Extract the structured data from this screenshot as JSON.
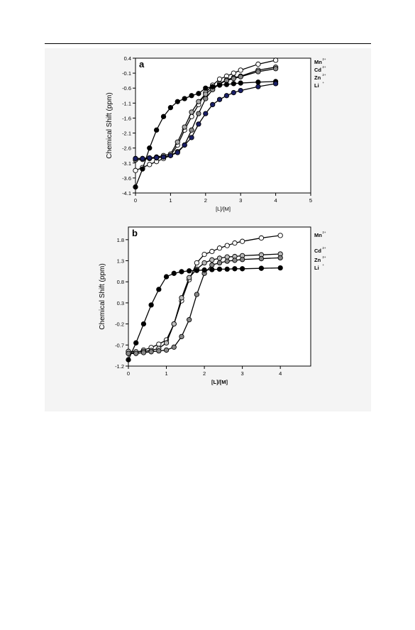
{
  "chart_data": [
    {
      "type": "line",
      "panel_label": "a",
      "xlabel": "[L]/[M]",
      "ylabel": "Chemical Shift (ppm)",
      "xlim": [
        0,
        5
      ],
      "ylim": [
        -4.1,
        0.4
      ],
      "xticks": [
        0,
        1,
        2,
        3,
        4,
        5
      ],
      "yticks": [
        0.4,
        -0.1,
        -0.6,
        -1.1,
        -1.6,
        -2.1,
        -2.6,
        -3.1,
        -3.6,
        -4.1
      ],
      "ytick_labels": [
        "0.4",
        "-0.1",
        "-0.6",
        "-1.1",
        "-1.6",
        "-2.1",
        "-2.6",
        "-3.1",
        "-3.6",
        "-4.1"
      ],
      "grid": false,
      "legend_labels": [
        {
          "text": "Mn",
          "sup": "2+"
        },
        {
          "text": "Cd",
          "sup": "2+"
        },
        {
          "text": "Zn",
          "sup": "2+"
        },
        {
          "text": "Li",
          "sup": "+"
        }
      ],
      "series": [
        {
          "key": "Mn",
          "marker_fill": "#ffffff",
          "x": [
            0,
            0.2,
            0.4,
            0.6,
            0.8,
            1.0,
            1.2,
            1.4,
            1.6,
            1.8,
            2.0,
            2.2,
            2.4,
            2.6,
            2.8,
            3.0,
            3.5,
            4.0
          ],
          "y": [
            -3.35,
            -3.25,
            -3.15,
            -3.05,
            -2.95,
            -2.85,
            -2.5,
            -2.0,
            -1.55,
            -1.15,
            -0.75,
            -0.5,
            -0.3,
            -0.2,
            -0.1,
            0.0,
            0.2,
            0.33
          ]
        },
        {
          "key": "Cd",
          "marker_fill": "#aaaaaa",
          "x": [
            0,
            0.2,
            0.4,
            0.6,
            0.8,
            1.0,
            1.2,
            1.4,
            1.6,
            1.8,
            2.0,
            2.2,
            2.4,
            2.6,
            2.8,
            3.0,
            3.5,
            4.0
          ],
          "y": [
            -2.95,
            -2.95,
            -2.93,
            -2.9,
            -2.85,
            -2.8,
            -2.4,
            -1.9,
            -1.4,
            -1.05,
            -0.8,
            -0.6,
            -0.45,
            -0.32,
            -0.25,
            -0.2,
            0.0,
            0.1
          ]
        },
        {
          "key": "Zn",
          "marker_fill": "#888888",
          "x": [
            0,
            0.2,
            0.4,
            0.6,
            0.8,
            1.0,
            1.2,
            1.4,
            1.6,
            1.8,
            2.0,
            2.2,
            2.4,
            2.6,
            2.8,
            3.0,
            3.5,
            4.0
          ],
          "y": [
            -3.0,
            -2.98,
            -2.95,
            -2.93,
            -2.9,
            -2.85,
            -2.72,
            -2.5,
            -2.0,
            -1.45,
            -0.95,
            -0.65,
            -0.45,
            -0.35,
            -0.28,
            -0.22,
            -0.05,
            0.05
          ]
        },
        {
          "key": "Li",
          "marker_fill": "#000000",
          "x": [
            0,
            0.2,
            0.4,
            0.6,
            0.8,
            1.0,
            1.2,
            1.4,
            1.6,
            1.8,
            2.0,
            2.2,
            2.4,
            2.6,
            2.8,
            3.0,
            3.5,
            4.0
          ],
          "y": [
            -3.9,
            -3.3,
            -2.6,
            -2.0,
            -1.55,
            -1.25,
            -1.05,
            -0.95,
            -0.85,
            -0.78,
            -0.6,
            -0.55,
            -0.5,
            -0.48,
            -0.45,
            -0.43,
            -0.4,
            -0.38
          ]
        },
        {
          "key": "Li-blue",
          "marker_fill": "#1a1f66",
          "x": [
            0,
            0.2,
            0.4,
            0.6,
            0.8,
            1.0,
            1.2,
            1.4,
            1.6,
            1.8,
            2.0,
            2.2,
            2.4,
            2.6,
            2.8,
            3.0,
            3.5,
            4.0
          ],
          "y": [
            -2.95,
            -2.95,
            -2.93,
            -2.92,
            -2.9,
            -2.85,
            -2.75,
            -2.5,
            -2.25,
            -1.8,
            -1.45,
            -1.15,
            -0.98,
            -0.85,
            -0.75,
            -0.68,
            -0.55,
            -0.45
          ]
        }
      ]
    },
    {
      "type": "line",
      "panel_label": "b",
      "xlabel": "[L]/[M]",
      "ylabel": "Chemical Shift (ppm)",
      "xlim": [
        0,
        4.8
      ],
      "ylim": [
        -1.2,
        2.1
      ],
      "xticks": [
        0,
        1,
        2,
        3,
        4
      ],
      "yticks": [
        1.8,
        1.3,
        0.8,
        0.3,
        -0.2,
        -0.7,
        -1.2
      ],
      "ytick_labels": [
        "1.8",
        "1.3",
        "0.8",
        "0.3",
        "-0.2",
        "-0.7",
        "-1.2"
      ],
      "grid": false,
      "legend_labels": [
        {
          "text": "Mn",
          "sup": "2+"
        },
        {
          "text": "Cd",
          "sup": "2+"
        },
        {
          "text": "Zn",
          "sup": "2+"
        },
        {
          "text": "Li",
          "sup": "+"
        }
      ],
      "series": [
        {
          "key": "Mn",
          "marker_fill": "#ffffff",
          "x": [
            0,
            0.2,
            0.4,
            0.6,
            0.8,
            1.0,
            1.2,
            1.4,
            1.6,
            1.8,
            2.0,
            2.2,
            2.4,
            2.6,
            2.8,
            3.0,
            3.5,
            4.0
          ],
          "y": [
            -0.9,
            -0.88,
            -0.82,
            -0.76,
            -0.68,
            -0.58,
            -0.2,
            0.35,
            0.85,
            1.25,
            1.45,
            1.52,
            1.6,
            1.66,
            1.72,
            1.76,
            1.84,
            1.9
          ]
        },
        {
          "key": "Cd",
          "marker_fill": "#bbbbbb",
          "x": [
            0,
            0.2,
            0.4,
            0.6,
            0.8,
            1.0,
            1.2,
            1.4,
            1.6,
            1.8,
            2.0,
            2.2,
            2.4,
            2.6,
            2.8,
            3.0,
            3.5,
            4.0
          ],
          "y": [
            -0.85,
            -0.86,
            -0.85,
            -0.83,
            -0.78,
            -0.65,
            -0.2,
            0.42,
            0.9,
            1.1,
            1.25,
            1.32,
            1.36,
            1.39,
            1.4,
            1.42,
            1.44,
            1.46
          ]
        },
        {
          "key": "Zn",
          "marker_fill": "#888888",
          "x": [
            0,
            0.2,
            0.4,
            0.6,
            0.8,
            1.0,
            1.2,
            1.4,
            1.6,
            1.8,
            2.0,
            2.2,
            2.4,
            2.6,
            2.8,
            3.0,
            3.5,
            4.0
          ],
          "y": [
            -0.9,
            -0.9,
            -0.88,
            -0.86,
            -0.84,
            -0.82,
            -0.75,
            -0.5,
            -0.1,
            0.5,
            1.0,
            1.2,
            1.25,
            1.29,
            1.31,
            1.33,
            1.35,
            1.37
          ]
        },
        {
          "key": "Li",
          "marker_fill": "#000000",
          "x": [
            0,
            0.2,
            0.4,
            0.6,
            0.8,
            1.0,
            1.2,
            1.4,
            1.6,
            1.8,
            2.0,
            2.2,
            2.4,
            2.6,
            2.8,
            3.0,
            3.5,
            4.0
          ],
          "y": [
            -1.05,
            -0.65,
            -0.2,
            0.25,
            0.62,
            0.92,
            1.0,
            1.04,
            1.06,
            1.07,
            1.08,
            1.09,
            1.1,
            1.1,
            1.11,
            1.11,
            1.12,
            1.13
          ]
        }
      ]
    }
  ]
}
